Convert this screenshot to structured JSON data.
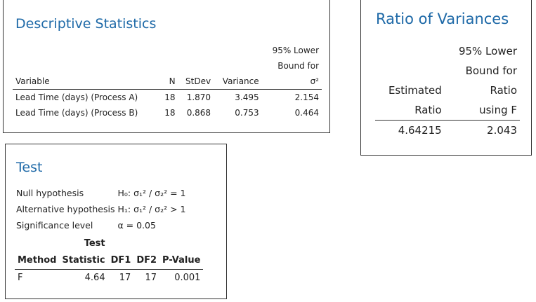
{
  "descriptive": {
    "title": "Descriptive Statistics",
    "table": {
      "headers": [
        "Variable",
        "N",
        "StDev",
        "Variance",
        [
          "95% Lower",
          "Bound for",
          "σ²"
        ]
      ],
      "rows": [
        [
          "Lead Time (days) (Process A)",
          "18",
          "1.870",
          "3.495",
          "2.154"
        ],
        [
          "Lead Time  (days) (Process B)",
          "18",
          "0.868",
          "0.753",
          "0.464"
        ]
      ]
    }
  },
  "ratio": {
    "title": "Ratio of Variances",
    "table": {
      "headers": [
        [
          "Estimated",
          "Ratio"
        ],
        [
          "95% Lower",
          "Bound for",
          "Ratio",
          "using F"
        ]
      ],
      "rows": [
        [
          "4.64215",
          "2.043"
        ]
      ]
    }
  },
  "test": {
    "title": "Test",
    "hypotheses": [
      [
        "Null hypothesis",
        "H₀: σ₁² / σ₂² = 1"
      ],
      [
        "Alternative hypothesis",
        "H₁: σ₁² / σ₂² > 1"
      ],
      [
        "Significance level",
        "α = 0.05"
      ]
    ],
    "table": {
      "headers": [
        "Method",
        [
          "Test",
          "Statistic"
        ],
        "DF1",
        "DF2",
        "P-Value"
      ],
      "rows": [
        [
          "F",
          "4.64",
          "17",
          "17",
          "0.001"
        ]
      ]
    }
  }
}
